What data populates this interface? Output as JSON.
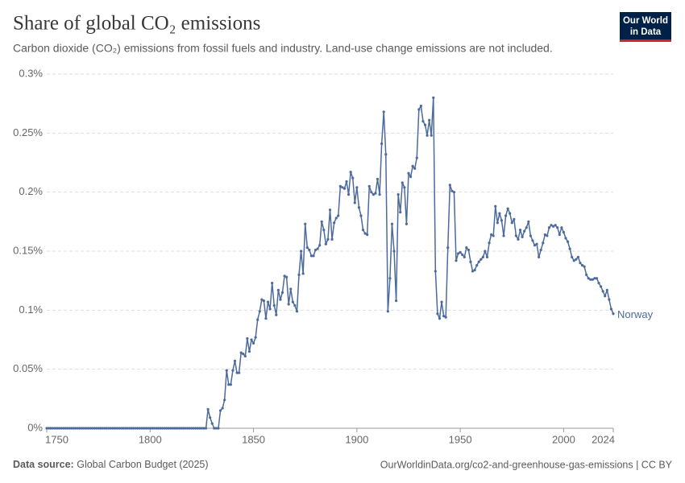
{
  "chart_data": {
    "type": "line",
    "title": "Share of global CO₂ emissions",
    "subtitle": "Carbon dioxide (CO₂) emissions from fossil fuels and industry. Land-use change emissions are not included.",
    "x": [
      1750,
      1751,
      1752,
      1753,
      1754,
      1755,
      1756,
      1757,
      1758,
      1759,
      1760,
      1761,
      1762,
      1763,
      1764,
      1765,
      1766,
      1767,
      1768,
      1769,
      1770,
      1771,
      1772,
      1773,
      1774,
      1775,
      1776,
      1777,
      1778,
      1779,
      1780,
      1781,
      1782,
      1783,
      1784,
      1785,
      1786,
      1787,
      1788,
      1789,
      1790,
      1791,
      1792,
      1793,
      1794,
      1795,
      1796,
      1797,
      1798,
      1799,
      1800,
      1801,
      1802,
      1803,
      1804,
      1805,
      1806,
      1807,
      1808,
      1809,
      1810,
      1811,
      1812,
      1813,
      1814,
      1815,
      1816,
      1817,
      1818,
      1819,
      1820,
      1821,
      1822,
      1823,
      1824,
      1825,
      1826,
      1827,
      1828,
      1829,
      1830,
      1831,
      1832,
      1833,
      1834,
      1835,
      1836,
      1837,
      1838,
      1839,
      1840,
      1841,
      1842,
      1843,
      1844,
      1845,
      1846,
      1847,
      1848,
      1849,
      1850,
      1851,
      1852,
      1853,
      1854,
      1855,
      1856,
      1857,
      1858,
      1859,
      1860,
      1861,
      1862,
      1863,
      1864,
      1865,
      1866,
      1867,
      1868,
      1869,
      1870,
      1871,
      1872,
      1873,
      1874,
      1875,
      1876,
      1877,
      1878,
      1879,
      1880,
      1881,
      1882,
      1883,
      1884,
      1885,
      1886,
      1887,
      1888,
      1889,
      1890,
      1891,
      1892,
      1893,
      1894,
      1895,
      1896,
      1897,
      1898,
      1899,
      1900,
      1901,
      1902,
      1903,
      1904,
      1905,
      1906,
      1907,
      1908,
      1909,
      1910,
      1911,
      1912,
      1913,
      1914,
      1915,
      1916,
      1917,
      1918,
      1919,
      1920,
      1921,
      1922,
      1923,
      1924,
      1925,
      1926,
      1927,
      1928,
      1929,
      1930,
      1931,
      1932,
      1933,
      1934,
      1935,
      1936,
      1937,
      1938,
      1939,
      1940,
      1941,
      1942,
      1943,
      1944,
      1945,
      1946,
      1947,
      1948,
      1949,
      1950,
      1951,
      1952,
      1953,
      1954,
      1955,
      1956,
      1957,
      1958,
      1959,
      1960,
      1961,
      1962,
      1963,
      1964,
      1965,
      1966,
      1967,
      1968,
      1969,
      1970,
      1971,
      1972,
      1973,
      1974,
      1975,
      1976,
      1977,
      1978,
      1979,
      1980,
      1981,
      1982,
      1983,
      1984,
      1985,
      1986,
      1987,
      1988,
      1989,
      1990,
      1991,
      1992,
      1993,
      1994,
      1995,
      1996,
      1997,
      1998,
      1999,
      2000,
      2001,
      2002,
      2003,
      2004,
      2005,
      2006,
      2007,
      2008,
      2009,
      2010,
      2011,
      2012,
      2013,
      2014,
      2015,
      2016,
      2017,
      2018,
      2019,
      2020,
      2021,
      2022,
      2023,
      2024
    ],
    "series": [
      {
        "name": "Norway",
        "color": "#4c6a9c",
        "values": [
          0,
          0,
          0,
          0,
          0,
          0,
          0,
          0,
          0,
          0,
          0,
          0,
          0,
          0,
          0,
          0,
          0,
          0,
          0,
          0,
          0,
          0,
          0,
          0,
          0,
          0,
          0,
          0,
          0,
          0,
          0,
          0,
          0,
          0,
          0,
          0,
          0,
          0,
          0,
          0,
          0,
          0,
          0,
          0,
          0,
          0,
          0,
          0,
          0,
          0,
          0,
          0,
          0,
          0,
          0,
          0,
          0,
          0,
          0,
          0,
          0,
          0,
          0,
          0,
          0,
          0,
          0,
          0,
          0,
          0,
          0,
          0,
          0,
          0,
          0,
          0,
          0,
          0,
          0.016,
          0.009,
          0.004,
          0,
          0,
          0,
          0.015,
          0.017,
          0.024,
          0.049,
          0.037,
          0.037,
          0.049,
          0.057,
          0.047,
          0.047,
          0.064,
          0.063,
          0.061,
          0.076,
          0.065,
          0.075,
          0.072,
          0.077,
          0.092,
          0.099,
          0.109,
          0.108,
          0.093,
          0.107,
          0.101,
          0.123,
          0.104,
          0.096,
          0.117,
          0.109,
          0.115,
          0.129,
          0.128,
          0.105,
          0.118,
          0.107,
          0.104,
          0.099,
          0.13,
          0.15,
          0.131,
          0.173,
          0.153,
          0.151,
          0.146,
          0.146,
          0.151,
          0.152,
          0.155,
          0.175,
          0.168,
          0.156,
          0.16,
          0.185,
          0.16,
          0.174,
          0.178,
          0.18,
          0.205,
          0.204,
          0.203,
          0.209,
          0.198,
          0.217,
          0.212,
          0.191,
          0.204,
          0.187,
          0.18,
          0.168,
          0.165,
          0.164,
          0.205,
          0.2,
          0.198,
          0.199,
          0.211,
          0.198,
          0.241,
          0.268,
          0.232,
          0.099,
          0.127,
          0.173,
          0.15,
          0.108,
          0.198,
          0.183,
          0.208,
          0.204,
          0.173,
          0.216,
          0.213,
          0.222,
          0.22,
          0.229,
          0.27,
          0.273,
          0.26,
          0.257,
          0.248,
          0.261,
          0.248,
          0.28,
          0.133,
          0.097,
          0.093,
          0.107,
          0.095,
          0.094,
          0.153,
          0.206,
          0.201,
          0.2,
          0.142,
          0.148,
          0.149,
          0.147,
          0.145,
          0.153,
          0.151,
          0.141,
          0.133,
          0.134,
          0.138,
          0.141,
          0.143,
          0.145,
          0.15,
          0.145,
          0.157,
          0.164,
          0.163,
          0.188,
          0.174,
          0.182,
          0.176,
          0.163,
          0.18,
          0.186,
          0.182,
          0.174,
          0.177,
          0.163,
          0.16,
          0.168,
          0.162,
          0.167,
          0.17,
          0.175,
          0.163,
          0.159,
          0.155,
          0.156,
          0.145,
          0.151,
          0.157,
          0.164,
          0.163,
          0.17,
          0.172,
          0.171,
          0.172,
          0.17,
          0.164,
          0.17,
          0.166,
          0.161,
          0.158,
          0.152,
          0.145,
          0.142,
          0.143,
          0.145,
          0.14,
          0.138,
          0.137,
          0.13,
          0.127,
          0.126,
          0.126,
          0.127,
          0.127,
          0.123,
          0.12,
          0.116,
          0.112,
          0.117,
          0.109,
          0.101,
          0.097
        ]
      }
    ],
    "xlim": [
      1750,
      2024
    ],
    "xticks": [
      1750,
      1800,
      1850,
      1900,
      1950,
      2000,
      2024
    ],
    "ylim": [
      0,
      0.3
    ],
    "yticks": [
      {
        "value": 0,
        "label": "0%"
      },
      {
        "value": 0.05,
        "label": "0.05%"
      },
      {
        "value": 0.1,
        "label": "0.1%"
      },
      {
        "value": 0.15,
        "label": "0.15%"
      },
      {
        "value": 0.2,
        "label": "0.2%"
      },
      {
        "value": 0.25,
        "label": "0.25%"
      },
      {
        "value": 0.3,
        "label": "0.3%"
      }
    ],
    "grid": true
  },
  "logo": [
    "Our World",
    "in Data"
  ],
  "footer": {
    "source_label": "Data source:",
    "source": "Global Carbon Budget (2025)",
    "url": "OurWorldinData.org/co2-and-greenhouse-gas-emissions | CC BY"
  }
}
